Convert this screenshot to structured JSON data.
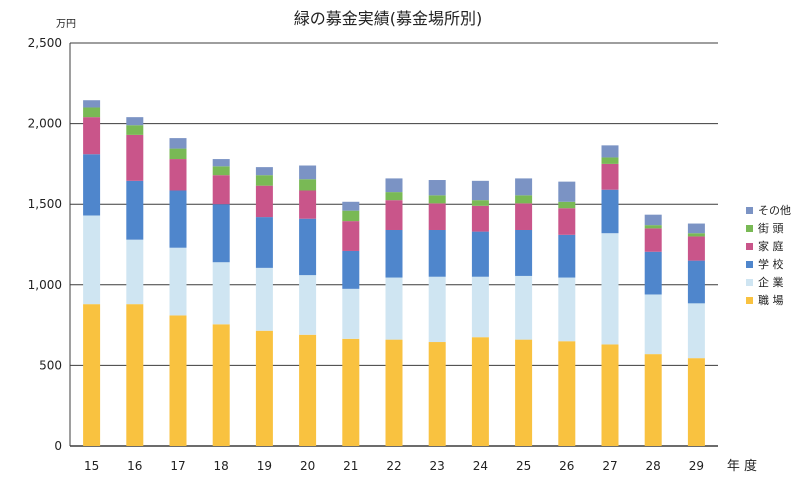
{
  "chart_data": {
    "type": "bar",
    "stacked": true,
    "title": "緑の募金実績(募金場所別)",
    "unit_label": "万円",
    "xlabel": "年 度",
    "ylim": [
      0,
      2500
    ],
    "yticks": [
      0,
      500,
      1000,
      1500,
      2000,
      2500
    ],
    "ytick_labels": [
      "0",
      "500",
      "1,000",
      "1,500",
      "2,000",
      "2,500"
    ],
    "grid": true,
    "legend_position": "right",
    "categories": [
      "15",
      "16",
      "17",
      "18",
      "19",
      "20",
      "21",
      "22",
      "23",
      "24",
      "25",
      "26",
      "27",
      "28",
      "29"
    ],
    "series": [
      {
        "name": "職 場",
        "color": "#f9c240",
        "values": [
          880,
          880,
          810,
          755,
          715,
          690,
          665,
          660,
          645,
          675,
          660,
          650,
          630,
          570,
          545
        ]
      },
      {
        "name": "企 業",
        "color": "#cfe5f2",
        "values": [
          550,
          400,
          420,
          385,
          390,
          370,
          310,
          385,
          405,
          375,
          395,
          395,
          690,
          370,
          340
        ]
      },
      {
        "name": "学 校",
        "color": "#4f86cc",
        "values": [
          380,
          365,
          355,
          360,
          315,
          350,
          235,
          295,
          290,
          280,
          285,
          265,
          270,
          265,
          265
        ]
      },
      {
        "name": "家 庭",
        "color": "#c9558a",
        "values": [
          230,
          285,
          195,
          180,
          195,
          175,
          185,
          185,
          165,
          160,
          165,
          165,
          160,
          145,
          150
        ]
      },
      {
        "name": "街 頭",
        "color": "#79b955",
        "values": [
          60,
          60,
          65,
          55,
          65,
          70,
          65,
          50,
          50,
          35,
          50,
          40,
          40,
          20,
          20
        ]
      },
      {
        "name": "その他",
        "color": "#7b93c4",
        "values": [
          45,
          50,
          65,
          45,
          50,
          85,
          55,
          85,
          95,
          120,
          105,
          125,
          75,
          65,
          60
        ]
      }
    ]
  }
}
